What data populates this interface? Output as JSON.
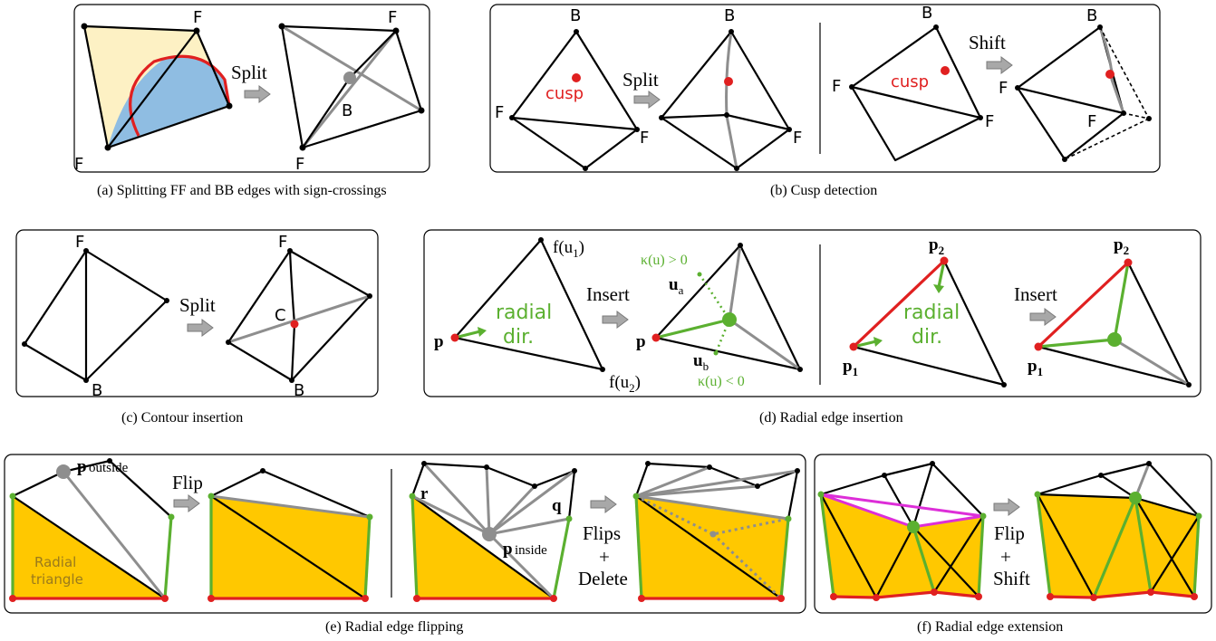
{
  "colors": {
    "front_fill": "#fdf1c4",
    "back_fill": "#8fbde2",
    "contour_curve": "#e02020",
    "radial_fill": "#ffc800",
    "green": "#5bb030",
    "red": "#e02020",
    "gray": "#8e8e8e",
    "magenta": "#dd2ed8"
  },
  "arrow_icon": "gray-right-arrow",
  "panels": {
    "a": {
      "caption": "(a)  Splitting FF and BB edges with sign-crossings",
      "op": "Split",
      "label_f": "F",
      "label_b": "B"
    },
    "b": {
      "caption": "(b)  Cusp detection",
      "op_split": "Split",
      "op_shift": "Shift",
      "cusp": "cusp",
      "label_f": "F",
      "label_b": "B"
    },
    "c": {
      "caption": "(c)  Contour insertion",
      "op": "Split",
      "label_f": "F",
      "label_b": "B",
      "label_c": "C"
    },
    "d": {
      "caption": "(d)  Radial edge insertion",
      "op": "Insert",
      "radial": "radial",
      "dir": "dir.",
      "p": "p",
      "p1": "p",
      "p1_sub": "1",
      "p2": "p",
      "p2_sub": "2",
      "fu1": "f(u",
      "fu1_sub": "1",
      "fu2": "f(u",
      "fu2_sub": "2",
      "close": ")",
      "ua": "u",
      "ua_sub": "a",
      "ub": "u",
      "ub_sub": "b",
      "kappa_pos": "κ(u) > 0",
      "kappa_neg": "κ(u) < 0"
    },
    "e": {
      "caption": "(e)  Radial edge flipping",
      "op_flip": "Flip",
      "op_flips": "Flips",
      "plus": "+",
      "op_delete": "Delete",
      "p_outside_p": "p",
      "p_outside": "outside",
      "p_inside_p": "p",
      "p_inside": "inside",
      "r": "r",
      "q": "q",
      "radial_line1": "Radial",
      "radial_line2": "triangle"
    },
    "f": {
      "caption": "(f)  Radial edge extension",
      "op_flip": "Flip",
      "plus": "+",
      "op_shift": "Shift"
    }
  }
}
